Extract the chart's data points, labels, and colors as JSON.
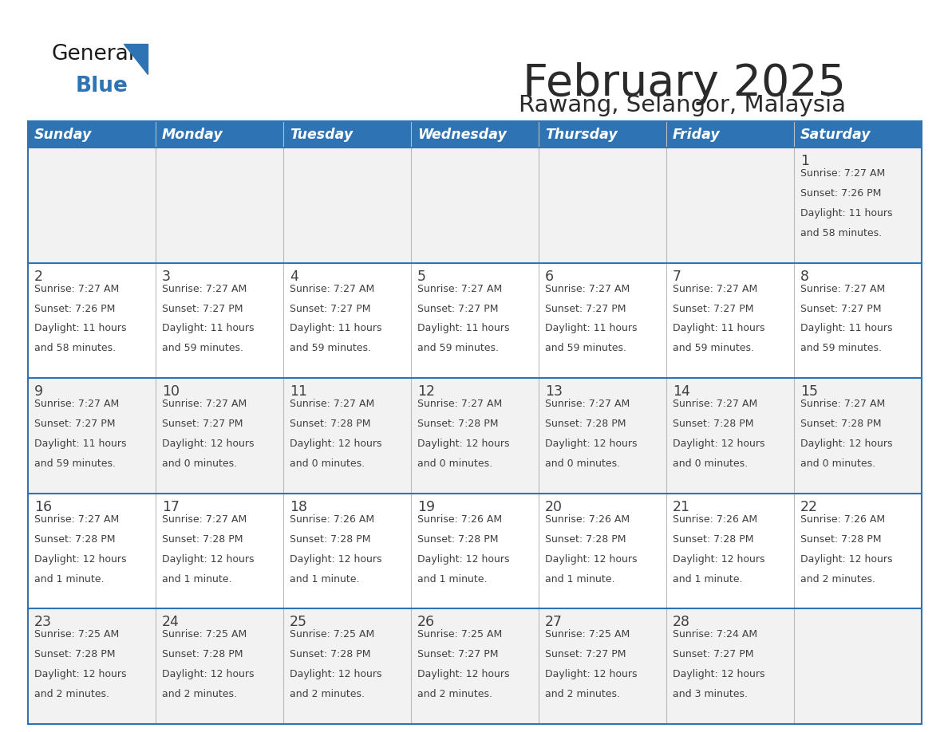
{
  "title": "February 2025",
  "subtitle": "Rawang, Selangor, Malaysia",
  "days_of_week": [
    "Sunday",
    "Monday",
    "Tuesday",
    "Wednesday",
    "Thursday",
    "Friday",
    "Saturday"
  ],
  "header_bg": "#2E74B5",
  "header_text": "#FFFFFF",
  "row_bg_even": "#F2F2F2",
  "row_bg_odd": "#FFFFFF",
  "separator_color": "#2E74B5",
  "day_number_color": "#404040",
  "cell_text_color": "#404040",
  "title_color": "#2a2a2a",
  "subtitle_color": "#2a2a2a",
  "calendar_data": [
    [
      {
        "day": "",
        "sunrise": "",
        "sunset": "",
        "daylight": ""
      },
      {
        "day": "",
        "sunrise": "",
        "sunset": "",
        "daylight": ""
      },
      {
        "day": "",
        "sunrise": "",
        "sunset": "",
        "daylight": ""
      },
      {
        "day": "",
        "sunrise": "",
        "sunset": "",
        "daylight": ""
      },
      {
        "day": "",
        "sunrise": "",
        "sunset": "",
        "daylight": ""
      },
      {
        "day": "",
        "sunrise": "",
        "sunset": "",
        "daylight": ""
      },
      {
        "day": "1",
        "sunrise": "7:27 AM",
        "sunset": "7:26 PM",
        "daylight": "11 hours\nand 58 minutes."
      }
    ],
    [
      {
        "day": "2",
        "sunrise": "7:27 AM",
        "sunset": "7:26 PM",
        "daylight": "11 hours\nand 58 minutes."
      },
      {
        "day": "3",
        "sunrise": "7:27 AM",
        "sunset": "7:27 PM",
        "daylight": "11 hours\nand 59 minutes."
      },
      {
        "day": "4",
        "sunrise": "7:27 AM",
        "sunset": "7:27 PM",
        "daylight": "11 hours\nand 59 minutes."
      },
      {
        "day": "5",
        "sunrise": "7:27 AM",
        "sunset": "7:27 PM",
        "daylight": "11 hours\nand 59 minutes."
      },
      {
        "day": "6",
        "sunrise": "7:27 AM",
        "sunset": "7:27 PM",
        "daylight": "11 hours\nand 59 minutes."
      },
      {
        "day": "7",
        "sunrise": "7:27 AM",
        "sunset": "7:27 PM",
        "daylight": "11 hours\nand 59 minutes."
      },
      {
        "day": "8",
        "sunrise": "7:27 AM",
        "sunset": "7:27 PM",
        "daylight": "11 hours\nand 59 minutes."
      }
    ],
    [
      {
        "day": "9",
        "sunrise": "7:27 AM",
        "sunset": "7:27 PM",
        "daylight": "11 hours\nand 59 minutes."
      },
      {
        "day": "10",
        "sunrise": "7:27 AM",
        "sunset": "7:27 PM",
        "daylight": "12 hours\nand 0 minutes."
      },
      {
        "day": "11",
        "sunrise": "7:27 AM",
        "sunset": "7:28 PM",
        "daylight": "12 hours\nand 0 minutes."
      },
      {
        "day": "12",
        "sunrise": "7:27 AM",
        "sunset": "7:28 PM",
        "daylight": "12 hours\nand 0 minutes."
      },
      {
        "day": "13",
        "sunrise": "7:27 AM",
        "sunset": "7:28 PM",
        "daylight": "12 hours\nand 0 minutes."
      },
      {
        "day": "14",
        "sunrise": "7:27 AM",
        "sunset": "7:28 PM",
        "daylight": "12 hours\nand 0 minutes."
      },
      {
        "day": "15",
        "sunrise": "7:27 AM",
        "sunset": "7:28 PM",
        "daylight": "12 hours\nand 0 minutes."
      }
    ],
    [
      {
        "day": "16",
        "sunrise": "7:27 AM",
        "sunset": "7:28 PM",
        "daylight": "12 hours\nand 1 minute."
      },
      {
        "day": "17",
        "sunrise": "7:27 AM",
        "sunset": "7:28 PM",
        "daylight": "12 hours\nand 1 minute."
      },
      {
        "day": "18",
        "sunrise": "7:26 AM",
        "sunset": "7:28 PM",
        "daylight": "12 hours\nand 1 minute."
      },
      {
        "day": "19",
        "sunrise": "7:26 AM",
        "sunset": "7:28 PM",
        "daylight": "12 hours\nand 1 minute."
      },
      {
        "day": "20",
        "sunrise": "7:26 AM",
        "sunset": "7:28 PM",
        "daylight": "12 hours\nand 1 minute."
      },
      {
        "day": "21",
        "sunrise": "7:26 AM",
        "sunset": "7:28 PM",
        "daylight": "12 hours\nand 1 minute."
      },
      {
        "day": "22",
        "sunrise": "7:26 AM",
        "sunset": "7:28 PM",
        "daylight": "12 hours\nand 2 minutes."
      }
    ],
    [
      {
        "day": "23",
        "sunrise": "7:25 AM",
        "sunset": "7:28 PM",
        "daylight": "12 hours\nand 2 minutes."
      },
      {
        "day": "24",
        "sunrise": "7:25 AM",
        "sunset": "7:28 PM",
        "daylight": "12 hours\nand 2 minutes."
      },
      {
        "day": "25",
        "sunrise": "7:25 AM",
        "sunset": "7:28 PM",
        "daylight": "12 hours\nand 2 minutes."
      },
      {
        "day": "26",
        "sunrise": "7:25 AM",
        "sunset": "7:27 PM",
        "daylight": "12 hours\nand 2 minutes."
      },
      {
        "day": "27",
        "sunrise": "7:25 AM",
        "sunset": "7:27 PM",
        "daylight": "12 hours\nand 2 minutes."
      },
      {
        "day": "28",
        "sunrise": "7:24 AM",
        "sunset": "7:27 PM",
        "daylight": "12 hours\nand 3 minutes."
      },
      {
        "day": "",
        "sunrise": "",
        "sunset": "",
        "daylight": ""
      }
    ]
  ]
}
